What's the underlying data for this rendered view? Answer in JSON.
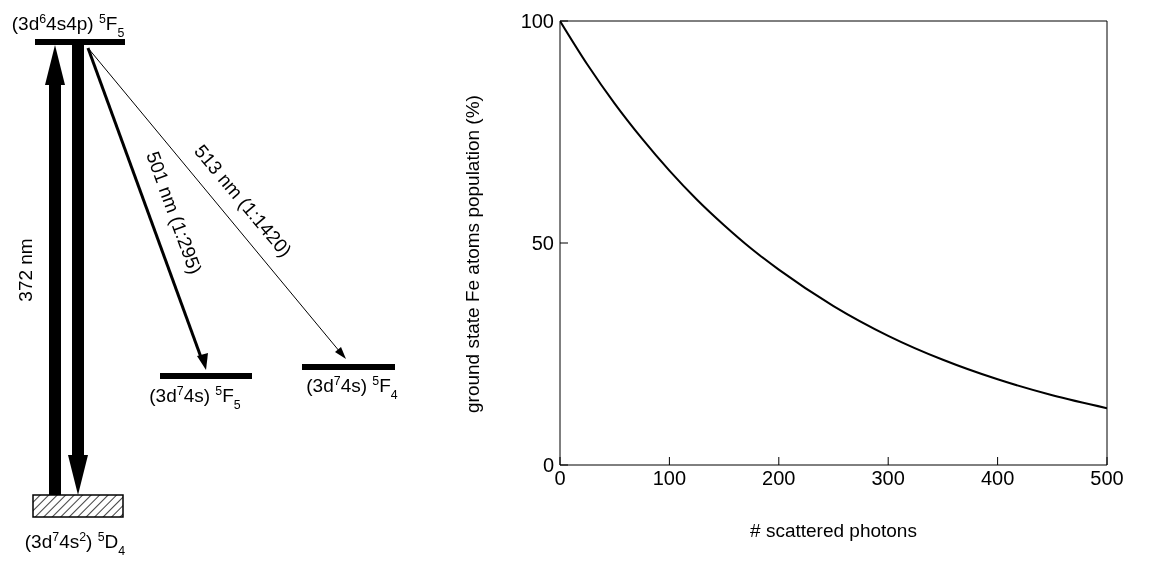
{
  "chart_data": [
    {
      "type": "other",
      "annotations": [
        "(3d$^{6}$4s4p) $^{5}$F$_{5}$",
        "372 nm",
        "501 nm (1:295)",
        "513 nm (1:1420)",
        "(3d$^{7}$4s) $^{5}$F$_{5}$",
        "(3d$^{7}$4s) $^{5}$F$_{4}$",
        "(3d$^{7}$4s$^{2}$) $^{5}$D$_{4}$"
      ]
    },
    {
      "type": "line",
      "xlabel": "# scattered photons",
      "ylabel": "ground state Fe atoms population (%)",
      "x": [
        0,
        25,
        50,
        75,
        100,
        125,
        150,
        175,
        200,
        250,
        300,
        350,
        400,
        450,
        500
      ],
      "series": [
        {
          "color": "#000000",
          "values": [
            100,
            90.2,
            81.4,
            73.5,
            66.3,
            59.8,
            54,
            48.7,
            44,
            35.8,
            29.1,
            23.7,
            19.3,
            15.7,
            12.8
          ]
        }
      ],
      "xlim": [
        0,
        500
      ],
      "ylim": [
        0,
        100
      ],
      "xticks": [
        0,
        100,
        200,
        300,
        400,
        500
      ],
      "yticks": [
        0,
        50,
        100
      ],
      "grid": false,
      "legend": false,
      "marker": "none",
      "line_style": "solid"
    }
  ]
}
